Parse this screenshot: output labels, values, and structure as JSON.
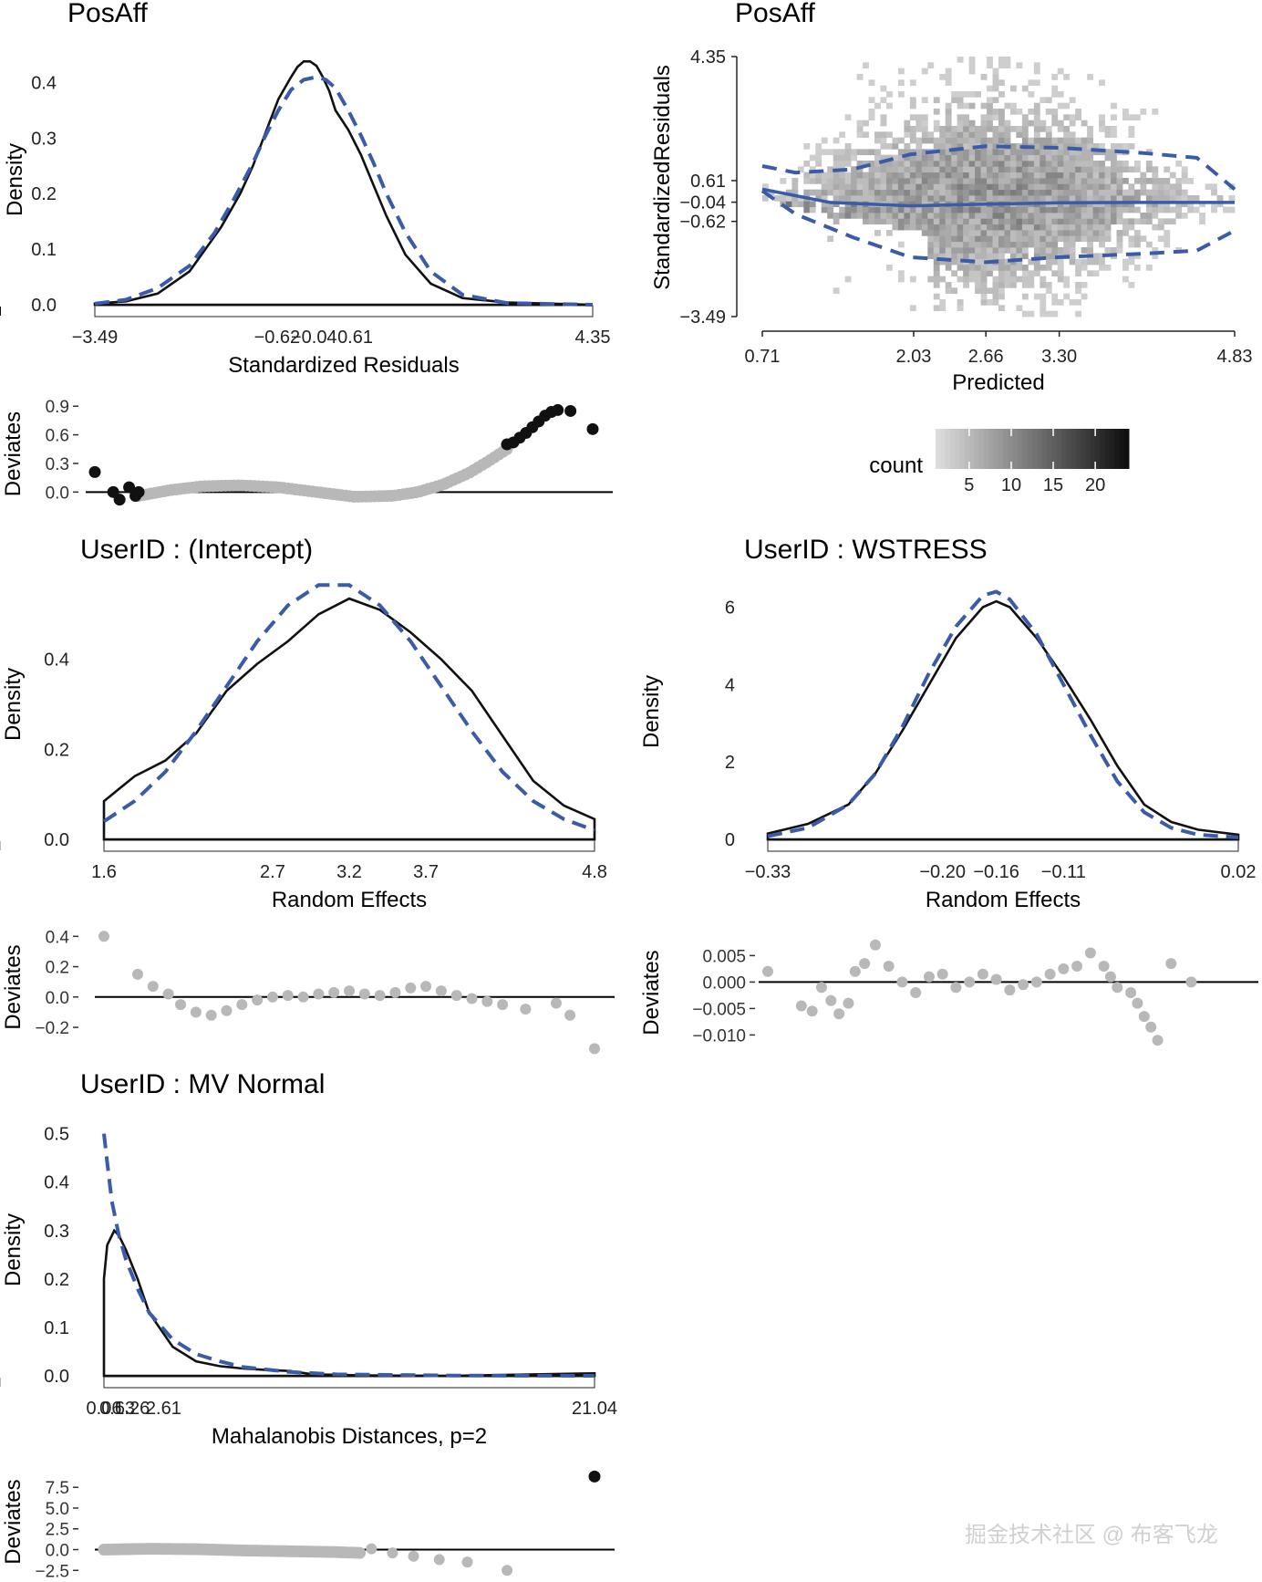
{
  "watermark": "掘金技术社区 @ 布客飞龙",
  "colors": {
    "observed": "#111111",
    "normal": "#3a5ba8",
    "loess": "#3a5ba8",
    "rug": "#bbbbbb",
    "point_gray": "#b8b8b8",
    "point_black": "#111111"
  },
  "chart_data": [
    {
      "id": "resid_density",
      "type": "line",
      "title": "PosAff",
      "xlabel": "Standardized Residuals",
      "ylabel": "Density",
      "xlim": [
        -3.49,
        4.35
      ],
      "ylim": [
        0,
        0.45
      ],
      "xticks": [
        -3.49,
        -0.62,
        -0.04,
        0.61,
        4.35
      ],
      "xtick_labels": [
        "−3.49",
        "−0.62",
        "−0.04",
        "0.61",
        "4.35"
      ],
      "yticks": [
        0,
        0.1,
        0.2,
        0.3,
        0.4
      ],
      "ytick_labels": [
        "0.0",
        "0.1",
        "0.2",
        "0.3",
        "0.4"
      ],
      "series": [
        {
          "name": "observed",
          "style": "solid",
          "x": [
            -3.49,
            -3.0,
            -2.5,
            -2.0,
            -1.5,
            -1.2,
            -1.0,
            -0.8,
            -0.6,
            -0.4,
            -0.3,
            -0.2,
            -0.1,
            0.0,
            0.1,
            0.2,
            0.3,
            0.5,
            0.7,
            0.9,
            1.1,
            1.4,
            1.8,
            2.3,
            3.0,
            4.35
          ],
          "y": [
            0.002,
            0.006,
            0.02,
            0.06,
            0.14,
            0.2,
            0.25,
            0.31,
            0.37,
            0.41,
            0.428,
            0.438,
            0.438,
            0.43,
            0.41,
            0.385,
            0.35,
            0.315,
            0.27,
            0.215,
            0.16,
            0.09,
            0.038,
            0.012,
            0.004,
            0.0
          ]
        },
        {
          "name": "normal",
          "style": "dashed",
          "x": [
            -3.49,
            -3.0,
            -2.5,
            -2.0,
            -1.6,
            -1.3,
            -1.0,
            -0.8,
            -0.6,
            -0.4,
            -0.2,
            0.0,
            0.15,
            0.3,
            0.5,
            0.7,
            0.9,
            1.1,
            1.4,
            1.8,
            2.3,
            3.0,
            4.35
          ],
          "y": [
            0.002,
            0.009,
            0.03,
            0.07,
            0.13,
            0.19,
            0.255,
            0.305,
            0.35,
            0.387,
            0.405,
            0.41,
            0.405,
            0.39,
            0.35,
            0.305,
            0.255,
            0.2,
            0.13,
            0.06,
            0.018,
            0.003,
            0.0
          ]
        }
      ]
    },
    {
      "id": "resid_qq",
      "type": "scatter",
      "ylabel": "Deviates",
      "ylim": [
        -0.15,
        0.95
      ],
      "yticks": [
        0,
        0.3,
        0.6,
        0.9
      ],
      "ytick_labels": [
        "0.0",
        "0.3",
        "0.6",
        "0.9"
      ],
      "points_black": [
        [
          -3.49,
          0.21
        ],
        [
          -3.2,
          0.0
        ],
        [
          -3.1,
          -0.08
        ],
        [
          -2.95,
          0.05
        ],
        [
          -2.85,
          -0.04
        ],
        [
          -2.8,
          0.0
        ],
        [
          3.0,
          0.5
        ],
        [
          3.1,
          0.52
        ],
        [
          3.2,
          0.57
        ],
        [
          3.3,
          0.62
        ],
        [
          3.4,
          0.68
        ],
        [
          3.5,
          0.74
        ],
        [
          3.6,
          0.8
        ],
        [
          3.7,
          0.84
        ],
        [
          3.8,
          0.86
        ],
        [
          4.0,
          0.85
        ],
        [
          4.35,
          0.66
        ]
      ],
      "gray_curve_x": [
        -2.8,
        -2.3,
        -1.8,
        -1.2,
        -0.6,
        0.0,
        0.6,
        1.2,
        1.6,
        2.0,
        2.4,
        2.7,
        3.0
      ],
      "gray_curve_y": [
        -0.04,
        0.02,
        0.06,
        0.07,
        0.05,
        0.0,
        -0.05,
        -0.04,
        0.0,
        0.08,
        0.2,
        0.32,
        0.45
      ]
    },
    {
      "id": "resid_fitted",
      "type": "heatmap",
      "title": "PosAff",
      "xlabel": "Predicted",
      "ylabel": "StandardizedResiduals",
      "xlim": [
        0.71,
        4.83
      ],
      "ylim": [
        -3.49,
        4.35
      ],
      "xticks": [
        0.71,
        2.03,
        2.66,
        3.3,
        4.83
      ],
      "xtick_labels": [
        "0.71",
        "2.03",
        "2.66",
        "3.30",
        "4.83"
      ],
      "yticks": [
        -3.49,
        -0.62,
        -0.04,
        0.61,
        4.35
      ],
      "ytick_labels": [
        "−3.49",
        "−0.62",
        "−0.04",
        "0.61",
        "4.35"
      ],
      "legend_title": "count",
      "legend_ticks": [
        "5",
        "10",
        "15",
        "20"
      ],
      "legend_range": [
        1,
        24
      ],
      "loess_mean": {
        "x": [
          0.71,
          1.3,
          2.0,
          2.66,
          3.3,
          4.0,
          4.83
        ],
        "y": [
          0.35,
          -0.05,
          -0.15,
          -0.1,
          -0.06,
          -0.05,
          -0.05
        ]
      },
      "loess_upper": {
        "x": [
          0.71,
          1.0,
          1.5,
          2.0,
          2.66,
          3.3,
          4.0,
          4.5,
          4.83
        ],
        "y": [
          1.05,
          0.85,
          0.95,
          1.4,
          1.65,
          1.6,
          1.45,
          1.3,
          0.35
        ]
      },
      "loess_lower": {
        "x": [
          0.71,
          1.0,
          1.5,
          2.0,
          2.66,
          3.3,
          4.0,
          4.5,
          4.83
        ],
        "y": [
          0.3,
          -0.4,
          -1.1,
          -1.7,
          -1.85,
          -1.7,
          -1.6,
          -1.5,
          -0.9
        ]
      }
    },
    {
      "id": "re_intercept_density",
      "type": "line",
      "title": "UserID : (Intercept)",
      "xlabel": "Random Effects",
      "ylabel": "Density",
      "xlim": [
        1.6,
        4.8
      ],
      "ylim": [
        0,
        0.6
      ],
      "xticks": [
        1.6,
        2.7,
        3.2,
        3.7,
        4.8
      ],
      "xtick_labels": [
        "1.6",
        "2.7",
        "3.2",
        "3.7",
        "4.8"
      ],
      "yticks": [
        0,
        0.2,
        0.4
      ],
      "ytick_labels": [
        "0.0",
        "0.2",
        "0.4"
      ],
      "series": [
        {
          "name": "observed",
          "style": "solid",
          "x": [
            1.6,
            1.8,
            2.0,
            2.2,
            2.4,
            2.6,
            2.8,
            3.0,
            3.2,
            3.4,
            3.6,
            3.8,
            4.0,
            4.2,
            4.4,
            4.6,
            4.8
          ],
          "y": [
            0.085,
            0.14,
            0.175,
            0.235,
            0.33,
            0.39,
            0.44,
            0.5,
            0.535,
            0.51,
            0.46,
            0.4,
            0.33,
            0.23,
            0.13,
            0.075,
            0.045
          ]
        },
        {
          "name": "normal",
          "style": "dashed",
          "x": [
            1.6,
            1.8,
            2.0,
            2.2,
            2.4,
            2.6,
            2.8,
            3.0,
            3.2,
            3.4,
            3.6,
            3.8,
            4.0,
            4.2,
            4.4,
            4.6,
            4.8
          ],
          "y": [
            0.04,
            0.085,
            0.15,
            0.24,
            0.34,
            0.44,
            0.52,
            0.565,
            0.565,
            0.52,
            0.44,
            0.34,
            0.24,
            0.15,
            0.085,
            0.045,
            0.02
          ]
        }
      ]
    },
    {
      "id": "re_intercept_qq",
      "type": "scatter",
      "ylabel": "Deviates",
      "ylim": [
        -0.32,
        0.45
      ],
      "yticks": [
        -0.2,
        0,
        0.2,
        0.4
      ],
      "ytick_labels": [
        "−0.2",
        "0.0",
        "0.2",
        "0.4"
      ],
      "points": [
        [
          1.6,
          0.4
        ],
        [
          1.82,
          0.15
        ],
        [
          1.92,
          0.07
        ],
        [
          2.02,
          0.02
        ],
        [
          2.1,
          -0.05
        ],
        [
          2.2,
          -0.1
        ],
        [
          2.3,
          -0.12
        ],
        [
          2.4,
          -0.09
        ],
        [
          2.5,
          -0.05
        ],
        [
          2.6,
          -0.02
        ],
        [
          2.7,
          0.0
        ],
        [
          2.8,
          0.01
        ],
        [
          2.9,
          0.0
        ],
        [
          3.0,
          0.02
        ],
        [
          3.1,
          0.03
        ],
        [
          3.2,
          0.04
        ],
        [
          3.3,
          0.02
        ],
        [
          3.4,
          0.01
        ],
        [
          3.5,
          0.03
        ],
        [
          3.6,
          0.06
        ],
        [
          3.7,
          0.07
        ],
        [
          3.8,
          0.04
        ],
        [
          3.9,
          0.01
        ],
        [
          4.0,
          -0.01
        ],
        [
          4.1,
          -0.03
        ],
        [
          4.2,
          -0.05
        ],
        [
          4.35,
          -0.08
        ],
        [
          4.55,
          -0.04
        ],
        [
          4.64,
          -0.12
        ],
        [
          4.8,
          -0.34
        ]
      ]
    },
    {
      "id": "re_wstress_density",
      "type": "line",
      "title": "UserID : WSTRESS",
      "xlabel": "Random Effects",
      "ylabel": "Density",
      "xlim": [
        -0.33,
        0.02
      ],
      "ylim": [
        0,
        6.6
      ],
      "xticks": [
        -0.33,
        -0.2,
        -0.16,
        -0.11,
        0.02
      ],
      "xtick_labels": [
        "−0.33",
        "−0.20",
        "−0.16",
        "−0.11",
        "0.02"
      ],
      "yticks": [
        0,
        2,
        4,
        6
      ],
      "ytick_labels": [
        "0",
        "2",
        "4",
        "6"
      ],
      "series": [
        {
          "name": "observed",
          "style": "solid",
          "x": [
            -0.33,
            -0.3,
            -0.27,
            -0.25,
            -0.23,
            -0.21,
            -0.19,
            -0.17,
            -0.16,
            -0.15,
            -0.13,
            -0.11,
            -0.09,
            -0.07,
            -0.05,
            -0.03,
            -0.01,
            0.02
          ],
          "y": [
            0.15,
            0.4,
            0.9,
            1.7,
            2.8,
            4.0,
            5.2,
            6.0,
            6.15,
            6.0,
            5.2,
            4.2,
            3.1,
            1.9,
            0.9,
            0.45,
            0.25,
            0.12
          ]
        },
        {
          "name": "normal",
          "style": "dashed",
          "x": [
            -0.33,
            -0.3,
            -0.27,
            -0.25,
            -0.23,
            -0.21,
            -0.19,
            -0.17,
            -0.16,
            -0.15,
            -0.13,
            -0.11,
            -0.09,
            -0.07,
            -0.05,
            -0.03,
            -0.01,
            0.02
          ],
          "y": [
            0.08,
            0.3,
            0.9,
            1.7,
            2.9,
            4.3,
            5.5,
            6.3,
            6.4,
            6.2,
            5.3,
            4.0,
            2.7,
            1.5,
            0.7,
            0.3,
            0.12,
            0.05
          ]
        }
      ]
    },
    {
      "id": "re_wstress_qq",
      "type": "scatter",
      "ylabel": "Deviates",
      "ylim": [
        -0.012,
        0.008
      ],
      "yticks": [
        -0.01,
        -0.005,
        0.0,
        0.005
      ],
      "ytick_labels": [
        "−0.010",
        "−0.005",
        "0.000",
        "0.005"
      ],
      "points": [
        [
          -0.33,
          0.002
        ],
        [
          -0.305,
          -0.0045
        ],
        [
          -0.297,
          -0.0055
        ],
        [
          -0.29,
          -0.001
        ],
        [
          -0.283,
          -0.0035
        ],
        [
          -0.277,
          -0.006
        ],
        [
          -0.27,
          -0.004
        ],
        [
          -0.265,
          0.002
        ],
        [
          -0.258,
          0.0035
        ],
        [
          -0.25,
          0.007
        ],
        [
          -0.24,
          0.003
        ],
        [
          -0.23,
          0.0
        ],
        [
          -0.22,
          -0.002
        ],
        [
          -0.21,
          0.001
        ],
        [
          -0.2,
          0.0015
        ],
        [
          -0.19,
          -0.001
        ],
        [
          -0.18,
          0.0
        ],
        [
          -0.17,
          0.0015
        ],
        [
          -0.16,
          0.0005
        ],
        [
          -0.15,
          -0.0015
        ],
        [
          -0.14,
          -0.0005
        ],
        [
          -0.13,
          0.0
        ],
        [
          -0.12,
          0.0015
        ],
        [
          -0.11,
          0.0025
        ],
        [
          -0.1,
          0.003
        ],
        [
          -0.09,
          0.0055
        ],
        [
          -0.08,
          0.003
        ],
        [
          -0.075,
          0.001
        ],
        [
          -0.07,
          -0.001
        ],
        [
          -0.06,
          -0.002
        ],
        [
          -0.055,
          -0.004
        ],
        [
          -0.05,
          -0.0065
        ],
        [
          -0.045,
          -0.0085
        ],
        [
          -0.04,
          -0.011
        ],
        [
          -0.03,
          0.0035
        ],
        [
          -0.015,
          0.0
        ]
      ]
    },
    {
      "id": "mv_density",
      "type": "line",
      "title": "UserID : MV Normal",
      "xlabel": "Mahalanobis Distances, p=2",
      "ylabel": "Density",
      "xlim": [
        0.06,
        21.04
      ],
      "ylim": [
        0,
        0.52
      ],
      "xticks": [
        0.06,
        0.63,
        1.26,
        2.61,
        21.04
      ],
      "xtick_labels": [
        "0.06",
        "0.63",
        "1.26",
        "2.61",
        "21.04"
      ],
      "yticks": [
        0,
        0.1,
        0.2,
        0.3,
        0.4,
        0.5
      ],
      "ytick_labels": [
        "0.0",
        "0.1",
        "0.2",
        "0.3",
        "0.4",
        "0.5"
      ],
      "series": [
        {
          "name": "observed",
          "style": "solid",
          "x": [
            0.06,
            0.2,
            0.5,
            0.7,
            1.0,
            1.5,
            2.0,
            3.0,
            4.0,
            5.0,
            6.0,
            7.0,
            8.0,
            9.0,
            11.0,
            15.0,
            21.04
          ],
          "y": [
            0.2,
            0.27,
            0.3,
            0.29,
            0.26,
            0.2,
            0.13,
            0.06,
            0.03,
            0.02,
            0.015,
            0.012,
            0.01,
            0.003,
            0.001,
            0.0,
            0.005
          ]
        },
        {
          "name": "normal",
          "style": "dashed",
          "x": [
            0.06,
            0.2,
            0.4,
            0.7,
            1.0,
            1.5,
            2.0,
            3.0,
            4.0,
            5.0,
            6.0,
            8.0,
            10.0,
            15.0,
            21.04
          ],
          "y": [
            0.5,
            0.44,
            0.36,
            0.29,
            0.24,
            0.18,
            0.13,
            0.075,
            0.045,
            0.03,
            0.018,
            0.008,
            0.003,
            0.0005,
            0.0
          ]
        }
      ]
    },
    {
      "id": "mv_qq",
      "type": "scatter",
      "ylabel": "Deviates",
      "ylim": [
        -2.8,
        9.5
      ],
      "yticks": [
        -2.5,
        0.0,
        2.5,
        5.0,
        7.5
      ],
      "ytick_labels": [
        "−2.5",
        "0.0",
        "2.5",
        "5.0",
        "7.5"
      ],
      "points_black": [
        [
          21.04,
          8.8
        ]
      ],
      "gray_curve_x": [
        0.06,
        2.0,
        4.0,
        6.0,
        8.0,
        10.0,
        11.0
      ],
      "gray_curve_y": [
        0.0,
        0.1,
        0.05,
        -0.1,
        -0.2,
        -0.3,
        -0.4
      ],
      "points": [
        [
          11.5,
          0.1
        ],
        [
          12.4,
          -0.4
        ],
        [
          13.3,
          -0.8
        ],
        [
          14.4,
          -1.2
        ],
        [
          15.6,
          -1.5
        ],
        [
          17.3,
          -2.5
        ]
      ]
    }
  ]
}
